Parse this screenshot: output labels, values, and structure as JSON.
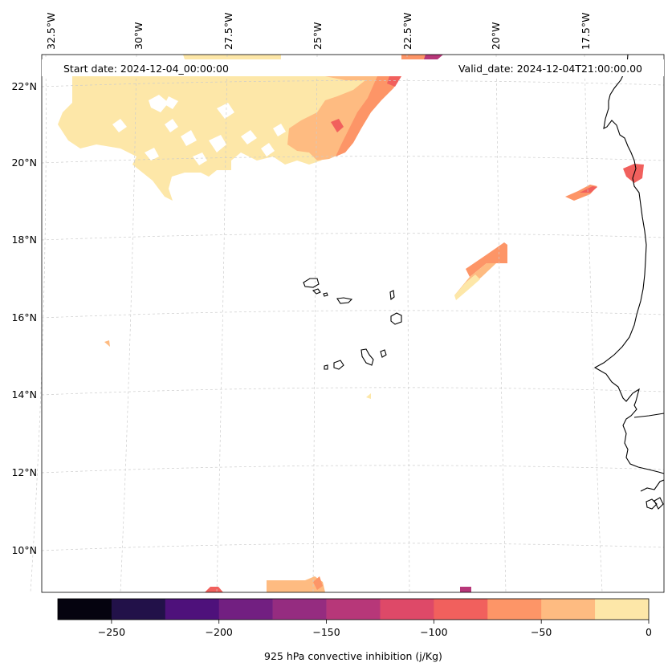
{
  "map": {
    "start_date": "Start date: 2024-12-04_00:00:00",
    "valid_date": "Valid_date: 2024-12-04T21:00:00.00",
    "lon_labels": [
      "32.5°W",
      "30°W",
      "27.5°W",
      "25°W",
      "22.5°W",
      "20°W",
      "17.5°W"
    ],
    "lat_labels": [
      "22°N",
      "20°N",
      "18°N",
      "16°N",
      "14°N",
      "12°N",
      "10°N"
    ],
    "lon_values": [
      -32.5,
      -30,
      -27.5,
      -25,
      -22.5,
      -20,
      -17.5
    ],
    "lat_values": [
      22,
      20,
      18,
      16,
      14,
      12,
      10
    ]
  },
  "colorbar": {
    "label": "925 hPa convective inhibition (j/Kg)",
    "ticks": [
      "−250",
      "−200",
      "−150",
      "−100",
      "−50",
      "0"
    ],
    "tick_values": [
      -250,
      -200,
      -150,
      -100,
      -50,
      0
    ],
    "range": [
      -275,
      0
    ],
    "bins": [
      {
        "from": -275,
        "to": -250,
        "color": "#05030f"
      },
      {
        "from": -250,
        "to": -225,
        "color": "#221149"
      },
      {
        "from": -225,
        "to": -200,
        "color": "#4e117b"
      },
      {
        "from": -200,
        "to": -175,
        "color": "#721f81"
      },
      {
        "from": -175,
        "to": -150,
        "color": "#952c80"
      },
      {
        "from": -150,
        "to": -125,
        "color": "#b73779"
      },
      {
        "from": -125,
        "to": -100,
        "color": "#de4968"
      },
      {
        "from": -100,
        "to": -75,
        "color": "#f1605d"
      },
      {
        "from": -75,
        "to": -50,
        "color": "#fd9567"
      },
      {
        "from": -50,
        "to": -25,
        "color": "#febb81"
      },
      {
        "from": -25,
        "to": 0,
        "color": "#fde7a8"
      }
    ]
  },
  "colors": {
    "pale": "#fde7a8",
    "light_orange": "#febb81",
    "orange": "#fd9567",
    "salmon": "#f1605d",
    "magenta": "#b73779",
    "grid": "#cccccc",
    "coast": "#000000"
  }
}
